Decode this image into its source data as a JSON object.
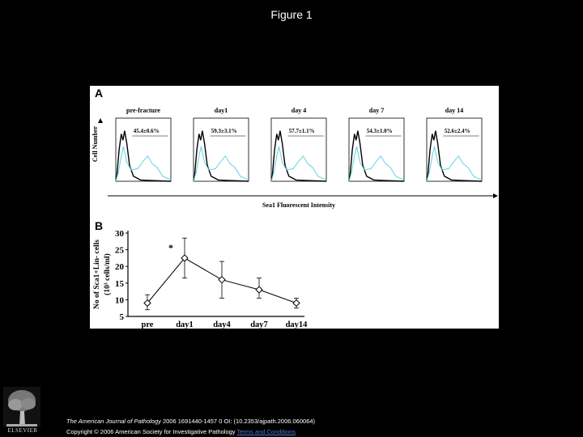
{
  "page": {
    "title": "Figure 1"
  },
  "panel_a": {
    "label": "A",
    "ylabel": "Cell Number",
    "xlabel": "Sea1 Fluorescent Intensity",
    "histograms": [
      {
        "title": "pre-fracture",
        "value": "45.4±0.6%"
      },
      {
        "title": "day1",
        "value": "59.3±3.1%"
      },
      {
        "title": "day 4",
        "value": "57.7±1.1%"
      },
      {
        "title": "day 7",
        "value": "54.3±1.0%"
      },
      {
        "title": "day 14",
        "value": "52.6±2.4%"
      }
    ]
  },
  "chart_data": {
    "type": "line",
    "panel_label": "B",
    "categories": [
      "pre",
      "day1",
      "day4",
      "day7",
      "day14"
    ],
    "values": [
      9,
      22.5,
      16,
      13,
      9
    ],
    "error_low": [
      7,
      16.5,
      10.5,
      10.5,
      7.5
    ],
    "error_high": [
      11.5,
      28.5,
      21.5,
      16.5,
      10.5
    ],
    "ylabel_line1": "No of Sca1+Lin- cells",
    "ylabel_line2": "(10³ cells/ml)",
    "ylim": [
      5,
      30
    ],
    "yticks": [
      5,
      10,
      15,
      20,
      25,
      30
    ],
    "annotation": "*",
    "marker": "diamond",
    "series_color": "#000000"
  },
  "colors": {
    "background": "#000000",
    "panel": "#ffffff",
    "isotype": "#000000",
    "sca1": "#5fd3e6",
    "link": "#4a7bd6"
  },
  "footer": {
    "journal": "The American Journal of Pathology",
    "citation": " 2006 1691440-1457 0 OI: (10.2353/ajpath.2006.060064)",
    "copyright": "Copyright © 2006 American Society for Investigative Pathology",
    "link_text": "Terms and Conditions"
  },
  "publisher": {
    "name": "ELSEVIER",
    "logo_icon": "elsevier-tree-icon"
  }
}
